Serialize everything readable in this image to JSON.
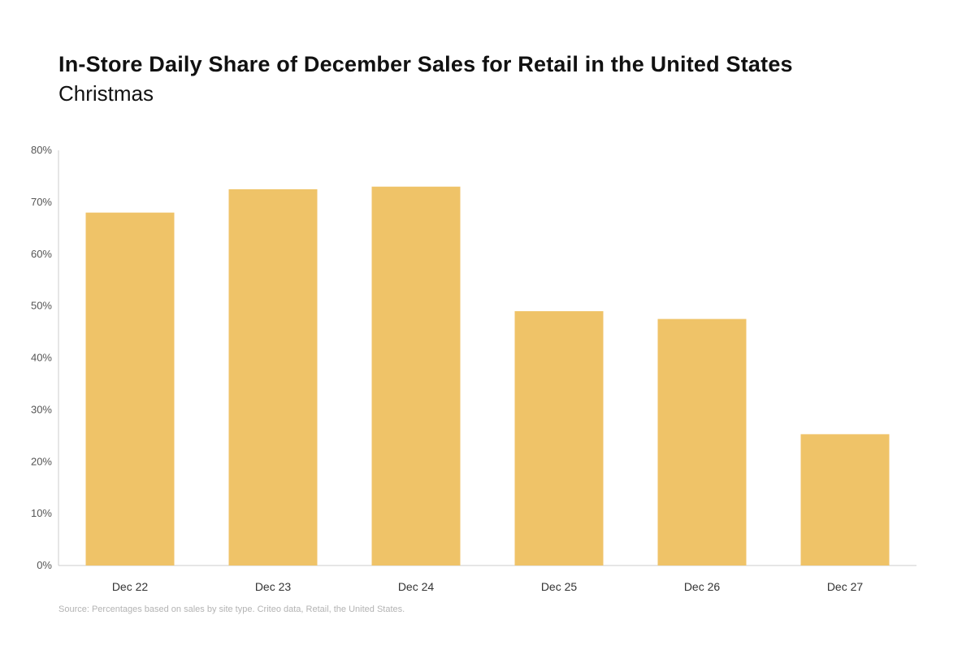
{
  "header": {
    "title": "In-Store Daily Share of December Sales for Retail in the United States",
    "subtitle": "Christmas"
  },
  "footer": {
    "source": "Source: Percentages based on sales by site type. Criteo data, Retail, the United States."
  },
  "colors": {
    "bar": "#EFC368",
    "axis": "#cccccc",
    "tick_text": "#555555"
  },
  "chart_data": {
    "type": "bar",
    "title": "In-Store Daily Share of December Sales for Retail in the United States",
    "subtitle": "Christmas",
    "categories": [
      "Dec 22",
      "Dec 23",
      "Dec 24",
      "Dec 25",
      "Dec 26",
      "Dec 27"
    ],
    "values": [
      68,
      72.5,
      73,
      49,
      47.5,
      25.3
    ],
    "ylim": [
      0,
      80
    ],
    "yticks": [
      "0%",
      "10%",
      "20%",
      "30%",
      "40%",
      "50%",
      "60%",
      "70%",
      "80%"
    ],
    "xlabel": "",
    "ylabel": "",
    "grid": false,
    "legend": "none"
  }
}
